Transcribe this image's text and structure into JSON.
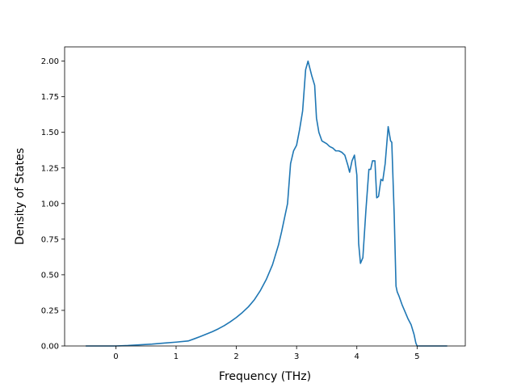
{
  "chart_data": {
    "type": "line",
    "title": "",
    "xlabel": "Frequency (THz)",
    "ylabel": "Density of States",
    "xlim": [
      -0.85,
      5.8
    ],
    "ylim": [
      0.0,
      2.1
    ],
    "xticks": [
      0,
      1,
      2,
      3,
      4,
      5
    ],
    "xtick_labels": [
      "0",
      "1",
      "2",
      "3",
      "4",
      "5"
    ],
    "yticks": [
      0.0,
      0.25,
      0.5,
      0.75,
      1.0,
      1.25,
      1.5,
      1.75,
      2.0
    ],
    "ytick_labels": [
      "0.00",
      "0.25",
      "0.50",
      "0.75",
      "1.00",
      "1.25",
      "1.50",
      "1.75",
      "2.00"
    ],
    "grid": false,
    "series_color": "#1f77b4",
    "series": [
      {
        "x": [
          -0.5,
          -0.2,
          0.0,
          0.2,
          0.4,
          0.6,
          0.8,
          1.0,
          1.2,
          1.3,
          1.4,
          1.5,
          1.6,
          1.7,
          1.8,
          1.9,
          2.0,
          2.1,
          2.2,
          2.3,
          2.4,
          2.5,
          2.6,
          2.7,
          2.75,
          2.8,
          2.85,
          2.9,
          2.95,
          3.0,
          3.05,
          3.1,
          3.15,
          3.19,
          3.22,
          3.25,
          3.3,
          3.33,
          3.37,
          3.42,
          3.5,
          3.55,
          3.6,
          3.65,
          3.7,
          3.75,
          3.8,
          3.85,
          3.88,
          3.92,
          3.96,
          4.0,
          4.03,
          4.06,
          4.1,
          4.15,
          4.2,
          4.23,
          4.26,
          4.3,
          4.33,
          4.36,
          4.4,
          4.43,
          4.47,
          4.52,
          4.56,
          4.58,
          4.62,
          4.65,
          4.67,
          4.7,
          4.75,
          4.8,
          4.85,
          4.9,
          4.95,
          4.98,
          5.0,
          5.5
        ],
        "y": [
          0.0,
          0.0,
          0.0,
          0.003,
          0.008,
          0.013,
          0.02,
          0.027,
          0.035,
          0.05,
          0.066,
          0.083,
          0.1,
          0.12,
          0.143,
          0.17,
          0.2,
          0.235,
          0.275,
          0.325,
          0.39,
          0.47,
          0.57,
          0.71,
          0.8,
          0.9,
          1.0,
          1.28,
          1.37,
          1.41,
          1.52,
          1.65,
          1.94,
          2.0,
          1.95,
          1.9,
          1.83,
          1.6,
          1.5,
          1.44,
          1.42,
          1.4,
          1.39,
          1.37,
          1.37,
          1.36,
          1.34,
          1.27,
          1.22,
          1.3,
          1.34,
          1.2,
          0.72,
          0.58,
          0.62,
          0.95,
          1.24,
          1.24,
          1.3,
          1.3,
          1.04,
          1.05,
          1.17,
          1.16,
          1.28,
          1.54,
          1.44,
          1.43,
          0.92,
          0.42,
          0.38,
          0.35,
          0.29,
          0.24,
          0.19,
          0.15,
          0.08,
          0.02,
          0.0,
          0.0
        ]
      }
    ]
  }
}
